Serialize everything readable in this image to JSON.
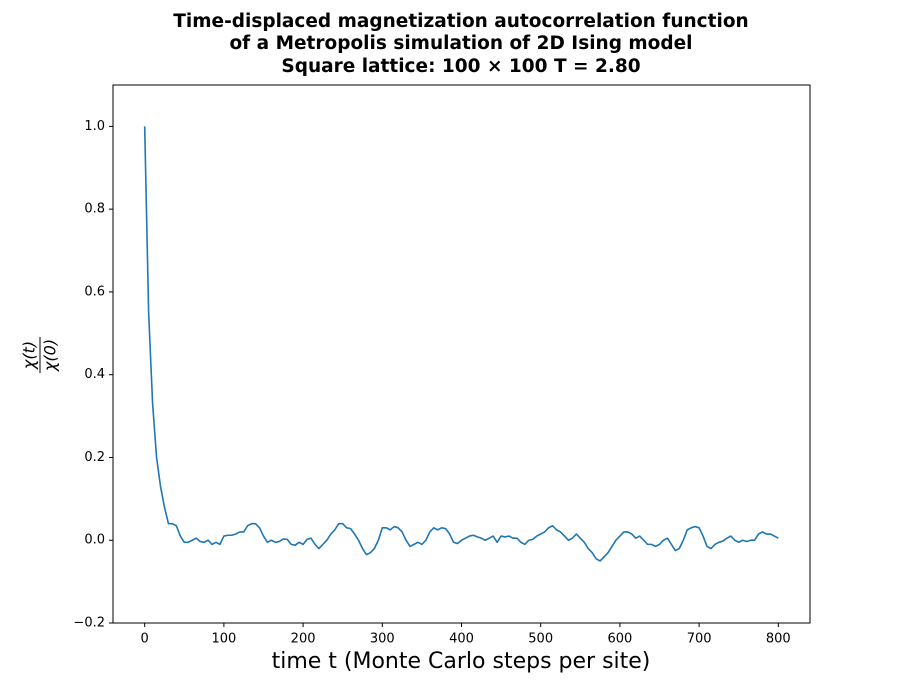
{
  "chart_data": {
    "type": "line",
    "title": [
      "Time-displaced magnetization autocorrelation function",
      "of a Metropolis simulation of 2D Ising model"
    ],
    "subtitle": "Square lattice: 100 × 100    T = 2.80",
    "xlabel": "time t (Monte Carlo steps per site)",
    "ylabel": {
      "numerator": "χ(t)",
      "denominator": "χ(0)"
    },
    "xlim": [
      -40,
      840
    ],
    "ylim": [
      -0.2,
      1.1
    ],
    "xticks": [
      0,
      100,
      200,
      300,
      400,
      500,
      600,
      700,
      800
    ],
    "yticks": [
      {
        "value": -0.2,
        "label": "−0.2"
      },
      {
        "value": 0,
        "label": "0.0"
      },
      {
        "value": 0.2,
        "label": "0.2"
      },
      {
        "value": 0.4,
        "label": "0.4"
      },
      {
        "value": 0.6,
        "label": "0.6"
      },
      {
        "value": 0.8,
        "label": "0.8"
      },
      {
        "value": 1.0,
        "label": "1.0"
      }
    ],
    "grid": false,
    "x": [
      0,
      5,
      10,
      15,
      20,
      25,
      30,
      35,
      40,
      45,
      50,
      55,
      60,
      65,
      70,
      75,
      80,
      85,
      90,
      95,
      100,
      105,
      110,
      115,
      120,
      125,
      130,
      135,
      140,
      145,
      150,
      155,
      160,
      165,
      170,
      175,
      180,
      185,
      190,
      195,
      200,
      205,
      210,
      215,
      220,
      225,
      230,
      235,
      240,
      245,
      250,
      255,
      260,
      265,
      270,
      275,
      280,
      285,
      290,
      295,
      300,
      305,
      310,
      315,
      320,
      325,
      330,
      335,
      340,
      345,
      350,
      355,
      360,
      365,
      370,
      375,
      380,
      385,
      390,
      395,
      400,
      405,
      410,
      415,
      420,
      425,
      430,
      435,
      440,
      445,
      450,
      455,
      460,
      465,
      470,
      475,
      480,
      485,
      490,
      495,
      500,
      505,
      510,
      515,
      520,
      525,
      530,
      535,
      540,
      545,
      550,
      555,
      560,
      565,
      570,
      575,
      580,
      585,
      590,
      595,
      600,
      605,
      610,
      615,
      620,
      625,
      630,
      635,
      640,
      645,
      650,
      655,
      660,
      665,
      670,
      675,
      680,
      685,
      690,
      695,
      700,
      705,
      710,
      715,
      720,
      725,
      730,
      735,
      740,
      745,
      750,
      755,
      760,
      765,
      770,
      775,
      780,
      785,
      790,
      795,
      800
    ],
    "series": [
      {
        "color": "#1f77b4",
        "values": [
          1.0,
          0.55,
          0.33,
          0.2,
          0.13,
          0.08,
          0.04,
          0.04,
          0.035,
          0.01,
          -0.005,
          -0.005,
          0.0,
          0.005,
          -0.003,
          -0.005,
          0.0,
          -0.01,
          -0.005,
          -0.01,
          0.01,
          0.012,
          0.012,
          0.015,
          0.02,
          0.02,
          0.035,
          0.04,
          0.04,
          0.03,
          0.01,
          -0.005,
          0.0,
          -0.005,
          -0.003,
          0.003,
          0.002,
          -0.01,
          -0.012,
          -0.005,
          -0.01,
          0.002,
          0.005,
          -0.01,
          -0.02,
          -0.01,
          0.0,
          0.015,
          0.025,
          0.04,
          0.04,
          0.03,
          0.028,
          0.015,
          0.0,
          -0.02,
          -0.035,
          -0.03,
          -0.02,
          0.0,
          0.03,
          0.03,
          0.025,
          0.033,
          0.03,
          0.02,
          0.0,
          -0.015,
          -0.01,
          -0.005,
          -0.01,
          0.0,
          0.02,
          0.03,
          0.025,
          0.03,
          0.028,
          0.015,
          -0.005,
          -0.008,
          0.0,
          0.005,
          0.01,
          0.012,
          0.008,
          0.005,
          0.0,
          0.005,
          0.01,
          -0.005,
          0.01,
          0.008,
          0.01,
          0.005,
          0.005,
          -0.005,
          -0.01,
          0.0,
          0.002,
          0.01,
          0.015,
          0.02,
          0.03,
          0.035,
          0.025,
          0.02,
          0.01,
          0.0,
          0.005,
          0.015,
          0.005,
          -0.005,
          -0.02,
          -0.03,
          -0.045,
          -0.05,
          -0.04,
          -0.03,
          -0.015,
          0.0,
          0.01,
          0.02,
          0.02,
          0.015,
          0.005,
          0.01,
          0.0,
          -0.01,
          -0.01,
          -0.015,
          -0.01,
          0.0,
          0.005,
          -0.01,
          -0.025,
          -0.02,
          0.0,
          0.025,
          0.03,
          0.033,
          0.03,
          0.01,
          -0.015,
          -0.02,
          -0.01,
          -0.005,
          -0.002,
          0.005,
          0.01,
          0.0,
          -0.005,
          0.0,
          -0.003,
          0.0,
          0.0,
          0.015,
          0.02,
          0.015,
          0.015,
          0.01,
          0.005
        ]
      }
    ]
  }
}
